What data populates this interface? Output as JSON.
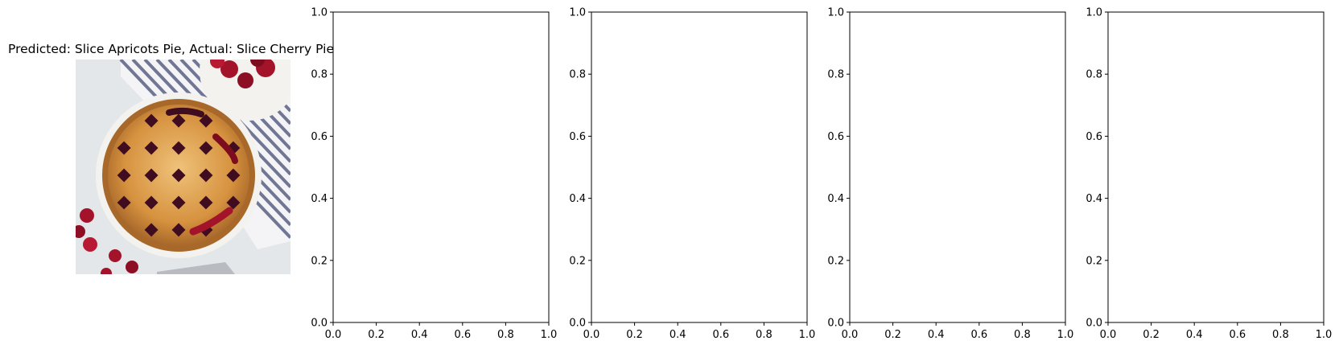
{
  "chart_data": [
    {
      "type": "image",
      "title": "Predicted: Slice Apricots Pie, Actual: Slice Cherry Pie",
      "image": {
        "subject": "cherry-lattice-pie",
        "colors": {
          "background": "#e4e7ea",
          "plate": "#f3f2ee",
          "crust": "#d6923f",
          "crust_light": "#ecbd72",
          "filling": "#3f0d1f",
          "cherry": "#a3142b",
          "towel_stripe": "#5b6185",
          "server": "#b8bcc0"
        }
      }
    },
    {
      "type": "line",
      "series": [],
      "xlim": [
        0.0,
        1.0
      ],
      "ylim": [
        0.0,
        1.0
      ],
      "xticks": [
        "0.0",
        "0.2",
        "0.4",
        "0.6",
        "0.8",
        "1.0"
      ],
      "yticks": [
        "0.0",
        "0.2",
        "0.4",
        "0.6",
        "0.8",
        "1.0"
      ],
      "grid": false
    },
    {
      "type": "line",
      "series": [],
      "xlim": [
        0.0,
        1.0
      ],
      "ylim": [
        0.0,
        1.0
      ],
      "xticks": [
        "0.0",
        "0.2",
        "0.4",
        "0.6",
        "0.8",
        "1.0"
      ],
      "yticks": [
        "0.0",
        "0.2",
        "0.4",
        "0.6",
        "0.8",
        "1.0"
      ],
      "grid": false
    },
    {
      "type": "line",
      "series": [],
      "xlim": [
        0.0,
        1.0
      ],
      "ylim": [
        0.0,
        1.0
      ],
      "xticks": [
        "0.0",
        "0.2",
        "0.4",
        "0.6",
        "0.8",
        "1.0"
      ],
      "yticks": [
        "0.0",
        "0.2",
        "0.4",
        "0.6",
        "0.8",
        "1.0"
      ],
      "grid": false
    },
    {
      "type": "line",
      "series": [],
      "xlim": [
        0.0,
        1.0
      ],
      "ylim": [
        0.0,
        1.0
      ],
      "xticks": [
        "0.0",
        "0.2",
        "0.4",
        "0.6",
        "0.8",
        "1.0"
      ],
      "yticks": [
        "0.0",
        "0.2",
        "0.4",
        "0.6",
        "0.8",
        "1.0"
      ],
      "grid": false
    }
  ]
}
